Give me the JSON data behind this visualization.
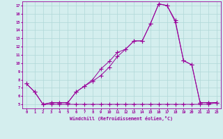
{
  "xlabel": "Windchill (Refroidissement éolien,°C)",
  "bg_color": "#d4eeee",
  "grid_color": "#b0d8d8",
  "line_color": "#990099",
  "xlim": [
    -0.5,
    23.5
  ],
  "ylim": [
    4.5,
    17.5
  ],
  "xticks": [
    0,
    1,
    2,
    3,
    4,
    5,
    6,
    7,
    8,
    9,
    10,
    11,
    12,
    13,
    14,
    15,
    16,
    17,
    18,
    19,
    20,
    21,
    22,
    23
  ],
  "yticks": [
    5,
    6,
    7,
    8,
    9,
    10,
    11,
    12,
    13,
    14,
    15,
    16,
    17
  ],
  "line1_x": [
    0,
    1,
    2,
    3,
    4,
    5,
    6,
    7,
    8,
    9,
    10,
    11,
    12,
    13,
    14,
    15,
    16,
    17,
    18,
    19,
    20,
    21,
    22,
    23
  ],
  "line1_y": [
    7.5,
    6.5,
    5.0,
    5.2,
    5.2,
    5.2,
    6.5,
    7.2,
    8.0,
    9.3,
    10.2,
    11.3,
    11.7,
    12.7,
    12.7,
    14.8,
    17.2,
    17.0,
    15.0,
    10.3,
    9.8,
    5.2,
    5.2,
    5.2
  ],
  "line2_x": [
    0,
    1,
    2,
    3,
    4,
    5,
    6,
    7,
    8,
    9,
    10,
    11,
    12,
    13,
    14,
    15,
    16,
    17,
    18,
    19,
    20,
    21,
    22,
    23
  ],
  "line2_y": [
    7.5,
    6.5,
    5.0,
    5.0,
    5.0,
    5.0,
    5.0,
    5.0,
    5.0,
    5.0,
    5.0,
    5.0,
    5.0,
    5.0,
    5.0,
    5.0,
    5.0,
    5.0,
    5.0,
    5.0,
    5.0,
    5.0,
    5.0,
    5.2
  ],
  "line3_x": [
    2,
    3,
    4,
    5,
    6,
    7,
    8,
    9,
    10,
    11,
    12,
    13,
    14,
    15,
    16,
    17,
    18,
    19,
    20,
    21,
    22,
    23
  ],
  "line3_y": [
    5.0,
    5.2,
    5.2,
    5.2,
    6.5,
    7.2,
    7.8,
    8.5,
    9.5,
    10.8,
    11.7,
    12.7,
    12.7,
    14.8,
    17.2,
    17.0,
    15.2,
    10.3,
    9.8,
    5.2,
    5.2,
    5.2
  ]
}
